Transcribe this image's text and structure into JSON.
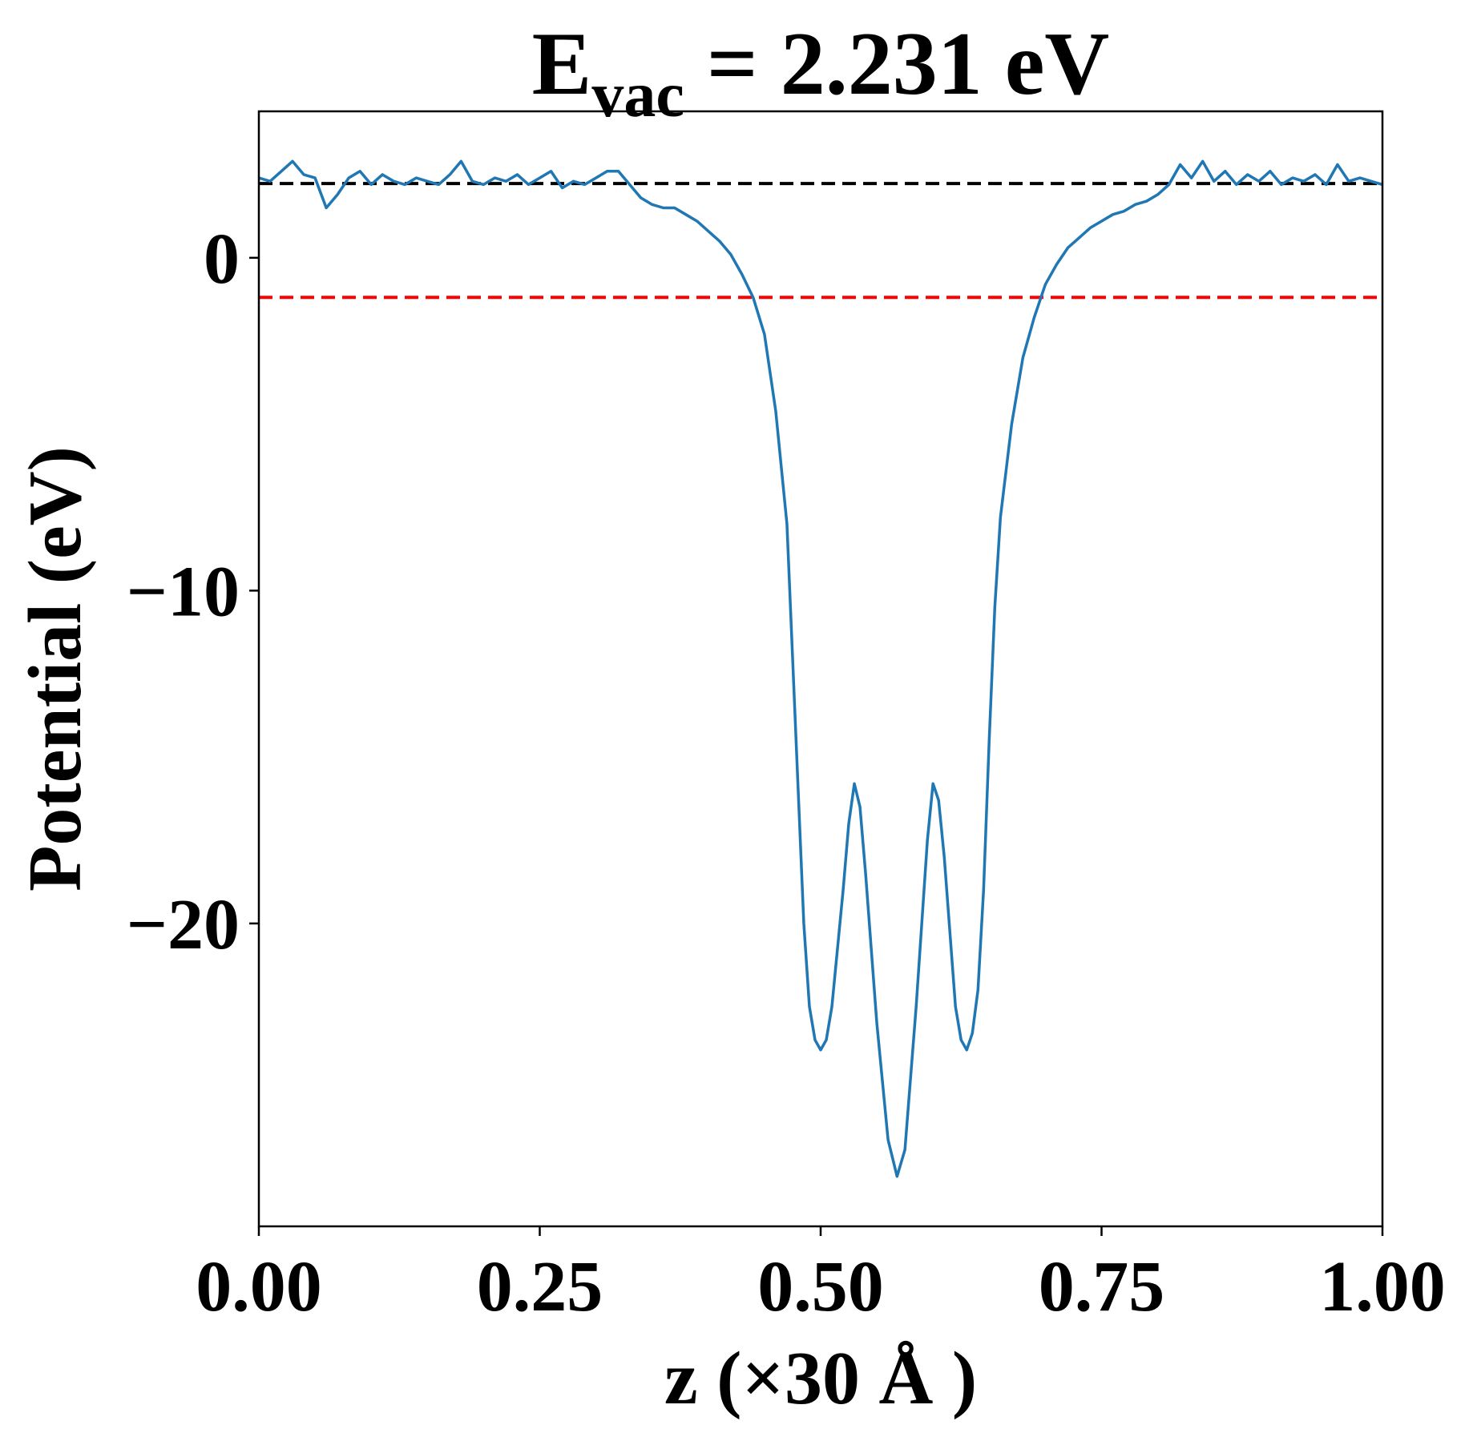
{
  "chart_data": {
    "type": "line",
    "title": [
      "E",
      "vac",
      " = 2.231 eV"
    ],
    "xlabel": "z (×30 Å )",
    "ylabel": "Potential (eV)",
    "xlim": [
      0,
      1
    ],
    "ylim": [
      -29.1,
      4.4
    ],
    "xticks": [
      {
        "value": 0,
        "label": "0.00"
      },
      {
        "value": 0.25,
        "label": "0.25"
      },
      {
        "value": 0.5,
        "label": "0.50"
      },
      {
        "value": 0.75,
        "label": "0.75"
      },
      {
        "value": 1,
        "label": "1.00"
      }
    ],
    "yticks": [
      0,
      {
        "value": -10,
        "label": "−10"
      },
      {
        "value": -20,
        "label": "−20"
      }
    ],
    "hlines": [
      {
        "value": 2.231,
        "color": "#000000"
      },
      {
        "value": -1.19,
        "color": "#ff0000"
      }
    ],
    "x": [
      0,
      0.01,
      0.02,
      0.03,
      0.04,
      0.05,
      0.06,
      0.07,
      0.08,
      0.09,
      0.1,
      0.11,
      0.12,
      0.13,
      0.14,
      0.15,
      0.16,
      0.17,
      0.18,
      0.19,
      0.2,
      0.21,
      0.22,
      0.23,
      0.24,
      0.25,
      0.26,
      0.27,
      0.28,
      0.29,
      0.3,
      0.31,
      0.32,
      0.33,
      0.34,
      0.35,
      0.36,
      0.37,
      0.38,
      0.39,
      0.4,
      0.41,
      0.42,
      0.43,
      0.44,
      0.45,
      0.46,
      0.47,
      0.475,
      0.48,
      0.485,
      0.49,
      0.495,
      0.5,
      0.505,
      0.51,
      0.52,
      0.525,
      0.53,
      0.535,
      0.54,
      0.55,
      0.56,
      0.568,
      0.575,
      0.585,
      0.595,
      0.6,
      0.605,
      0.61,
      0.62,
      0.625,
      0.63,
      0.635,
      0.64,
      0.645,
      0.65,
      0.655,
      0.66,
      0.67,
      0.68,
      0.69,
      0.7,
      0.71,
      0.72,
      0.73,
      0.74,
      0.75,
      0.76,
      0.77,
      0.78,
      0.79,
      0.8,
      0.81,
      0.82,
      0.83,
      0.84,
      0.85,
      0.86,
      0.87,
      0.88,
      0.89,
      0.9,
      0.91,
      0.92,
      0.93,
      0.94,
      0.95,
      0.96,
      0.97,
      0.98,
      0.99,
      1
    ],
    "series": [
      {
        "color": "#1f77b4",
        "values": [
          2.4,
          2.3,
          2.6,
          2.9,
          2.5,
          2.4,
          1.5,
          1.9,
          2.4,
          2.6,
          2.2,
          2.5,
          2.3,
          2.2,
          2.4,
          2.3,
          2.2,
          2.5,
          2.9,
          2.3,
          2.2,
          2.4,
          2.3,
          2.5,
          2.2,
          2.4,
          2.6,
          2.1,
          2.3,
          2.2,
          2.4,
          2.6,
          2.6,
          2.2,
          1.8,
          1.6,
          1.5,
          1.5,
          1.3,
          1.1,
          0.8,
          0.5,
          0.1,
          -0.5,
          -1.2,
          -2.3,
          -4.6,
          -8,
          -12,
          -16,
          -20,
          -22.5,
          -23.5,
          -23.8,
          -23.5,
          -22.5,
          -19,
          -17,
          -15.8,
          -16.5,
          -18.5,
          -23,
          -26.5,
          -27.6,
          -26.8,
          -22.5,
          -17.5,
          -15.8,
          -16.3,
          -18,
          -22.5,
          -23.5,
          -23.8,
          -23.3,
          -22,
          -19,
          -14.5,
          -10.5,
          -7.8,
          -5,
          -3,
          -1.8,
          -0.8,
          -0.2,
          0.3,
          0.6,
          0.9,
          1.1,
          1.3,
          1.4,
          1.6,
          1.7,
          1.9,
          2.2,
          2.8,
          2.4,
          2.9,
          2.3,
          2.6,
          2.2,
          2.5,
          2.3,
          2.6,
          2.2,
          2.4,
          2.3,
          2.5,
          2.2,
          2.8,
          2.3,
          2.4,
          2.3,
          2.2
        ]
      }
    ]
  }
}
